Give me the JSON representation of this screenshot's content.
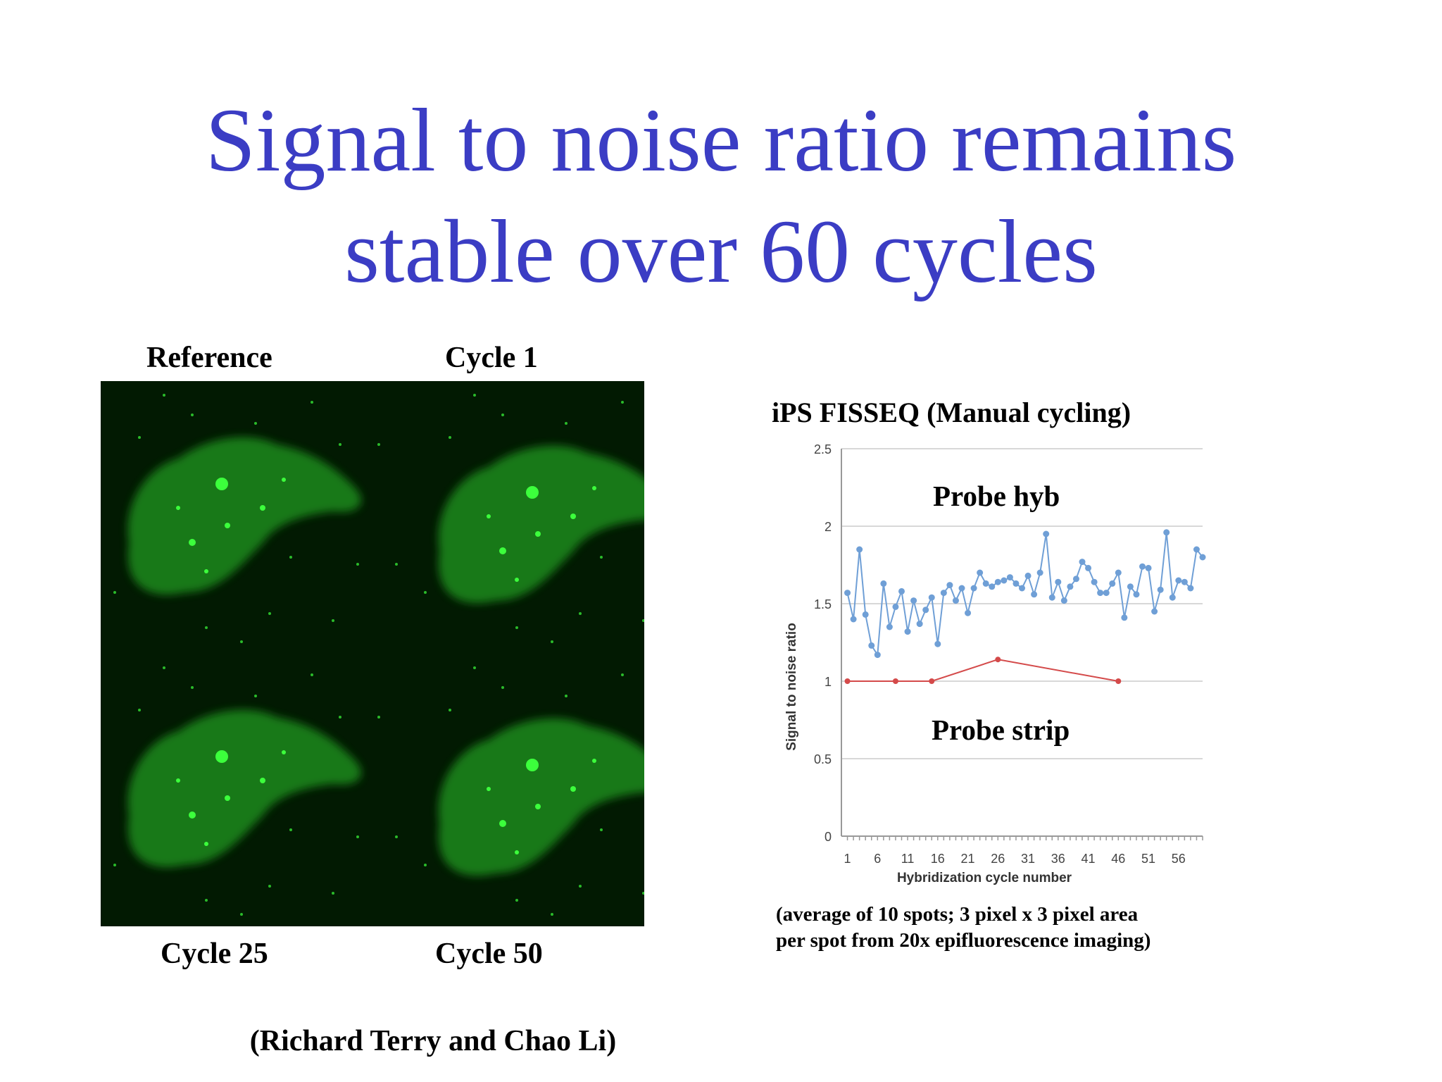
{
  "slide": {
    "title_line1": "Signal to noise ratio remains",
    "title_line2": "stable over 60 cycles",
    "credit": "(Richard Terry and Chao Li)"
  },
  "images": {
    "panels": [
      {
        "label": "Reference"
      },
      {
        "label": "Cycle 1"
      },
      {
        "label": "Cycle 25"
      },
      {
        "label": "Cycle 50"
      }
    ],
    "colors": {
      "background": "#021a02",
      "cell": "#1f8a1f",
      "spot": "#3cff3c"
    }
  },
  "chart_title": "iPS FISSEQ (Manual cycling)",
  "note_line1": "(average of 10 spots; 3 pixel x 3 pixel area",
  "note_line2": "per spot from 20x epifluorescence imaging)",
  "chart_data": {
    "type": "line",
    "xlabel": "Hybridization cycle number",
    "ylabel": "Signal to noise ratio",
    "xlim": [
      0,
      60
    ],
    "ylim": [
      0,
      2.5
    ],
    "yticks": [
      "0",
      "0.5",
      "1",
      "1.5",
      "2",
      "2.5"
    ],
    "ytick_values": [
      0,
      0.5,
      1,
      1.5,
      2,
      2.5
    ],
    "xticks": [
      "1",
      "6",
      "11",
      "16",
      "21",
      "26",
      "31",
      "36",
      "41",
      "46",
      "51",
      "56"
    ],
    "xtick_values": [
      1,
      6,
      11,
      16,
      21,
      26,
      31,
      36,
      41,
      46,
      51,
      56
    ],
    "grid": true,
    "annotations": [
      "Probe hyb",
      "Probe strip"
    ],
    "series": [
      {
        "color": "#6f9fd6",
        "x": [
          1,
          2,
          3,
          4,
          5,
          6,
          7,
          8,
          9,
          10,
          11,
          12,
          13,
          14,
          15,
          16,
          17,
          18,
          19,
          20,
          21,
          22,
          23,
          24,
          25,
          26,
          27,
          28,
          29,
          30,
          31,
          32,
          33,
          34,
          35,
          36,
          37,
          38,
          39,
          40,
          41,
          42,
          43,
          44,
          45,
          46,
          47,
          48,
          49,
          50,
          51,
          52,
          53,
          54,
          55,
          56,
          57,
          58,
          59,
          60
        ],
        "values": [
          1.57,
          1.4,
          1.85,
          1.43,
          1.23,
          1.17,
          1.63,
          1.35,
          1.48,
          1.58,
          1.32,
          1.52,
          1.37,
          1.46,
          1.54,
          1.24,
          1.57,
          1.62,
          1.52,
          1.6,
          1.44,
          1.6,
          1.7,
          1.63,
          1.61,
          1.64,
          1.65,
          1.67,
          1.63,
          1.6,
          1.68,
          1.56,
          1.7,
          1.95,
          1.54,
          1.64,
          1.52,
          1.61,
          1.66,
          1.77,
          1.73,
          1.64,
          1.57,
          1.57,
          1.63,
          1.7,
          1.41,
          1.61,
          1.56,
          1.74,
          1.73,
          1.45,
          1.59,
          1.96,
          1.54,
          1.65,
          1.64,
          1.6,
          1.85,
          1.8
        ]
      },
      {
        "color": "#d44a4a",
        "x": [
          1,
          9,
          15,
          26,
          46
        ],
        "values": [
          1.0,
          1.0,
          1.0,
          1.14,
          1.0
        ]
      }
    ]
  }
}
